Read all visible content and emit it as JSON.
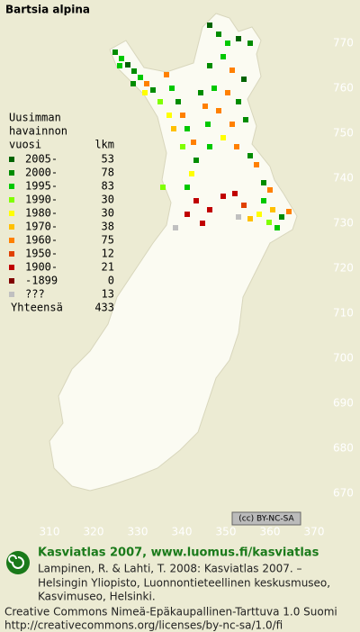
{
  "title": "Bartsia alpina",
  "legend": {
    "title": [
      "Uusimman",
      "havainnon",
      "vuosi"
    ],
    "count_header": "lkm",
    "rows": [
      {
        "label": "2005-",
        "count": 53,
        "color": "#006400"
      },
      {
        "label": "2000-",
        "count": 78,
        "color": "#008c00"
      },
      {
        "label": "1995-",
        "count": 83,
        "color": "#00c800"
      },
      {
        "label": "1990-",
        "count": 30,
        "color": "#80ff00"
      },
      {
        "label": "1980-",
        "count": 30,
        "color": "#ffff00"
      },
      {
        "label": "1970-",
        "count": 38,
        "color": "#ffc000"
      },
      {
        "label": "1960-",
        "count": 75,
        "color": "#ff8000"
      },
      {
        "label": "1950-",
        "count": 12,
        "color": "#e04000"
      },
      {
        "label": "1900-",
        "count": 21,
        "color": "#c00000"
      },
      {
        "label": "-1899",
        "count": 0,
        "color": "#800000"
      },
      {
        "label": "???",
        "count": 13,
        "color": "#c0c0c0"
      }
    ],
    "total": {
      "label": "Yhteensä",
      "count": 433
    }
  },
  "y_ticks": [
    770,
    760,
    750,
    740,
    730,
    720,
    710,
    700,
    690,
    680,
    670
  ],
  "x_ticks": [
    310,
    320,
    330,
    340,
    350,
    360,
    370
  ],
  "license_badge": "(cc) BY-NC-SA",
  "footer": {
    "heading": "Kasviatlas 2007, www.luomus.fi/kasviatlas",
    "citation": [
      "Lampinen, R. & Lahti, T. 2008: Kasviatlas 2007. –",
      "Helsingin Yliopisto, Luonnontieteellinen keskusmuseo,",
      "Kasvimuseo, Helsinki."
    ],
    "license": [
      "Creative Commons Nimeä-Epäkaupallinen-Tarttuva 1.0 Suomi",
      "http://creativecommons.org/licenses/by-nc-sa/1.0/fi"
    ]
  }
}
